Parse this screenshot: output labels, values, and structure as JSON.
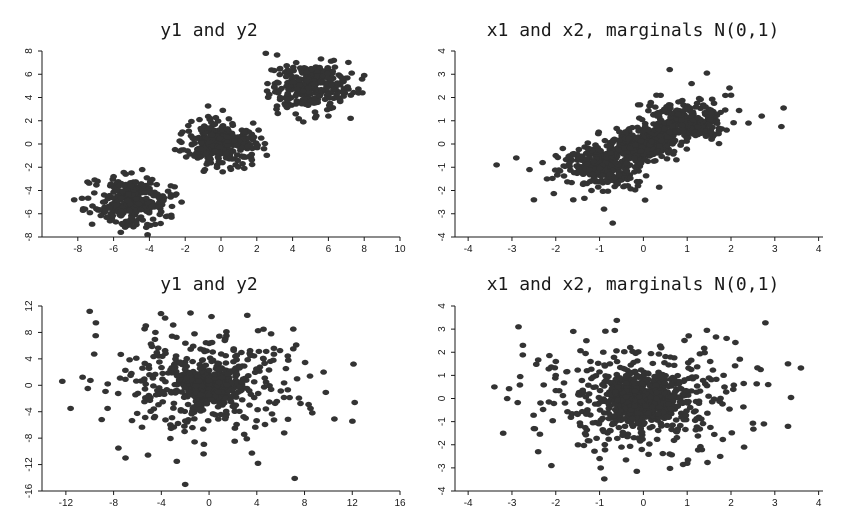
{
  "figure": {
    "panel_titles": [
      "y1 and y2",
      "x1 and x2, marginals N(0,1)",
      "y1 and y2",
      "x1 and x2, marginals N(0,1)"
    ]
  },
  "chart_data": [
    {
      "type": "scatter",
      "title": "y1 and y2",
      "xlabel": "",
      "ylabel": "",
      "xlim": [
        -10,
        10
      ],
      "ylim": [
        -8,
        8
      ],
      "xticks": [
        -8,
        -6,
        -4,
        -2,
        0,
        2,
        4,
        6,
        8,
        10
      ],
      "yticks": [
        -8,
        -6,
        -4,
        -2,
        0,
        2,
        4,
        6,
        8
      ],
      "grid": false,
      "point_color": "#333333",
      "clusters": [
        {
          "center": [
            -5,
            -5
          ],
          "spread": 1,
          "n": 300
        },
        {
          "center": [
            0,
            0
          ],
          "spread": 1,
          "n": 300
        },
        {
          "center": [
            5,
            5
          ],
          "spread": 1,
          "n": 300
        }
      ],
      "points": [
        [
          -8.2,
          -4.8
        ],
        [
          -7.6,
          -5.6
        ],
        [
          -6.9,
          -3.2
        ],
        [
          -7.2,
          -6.9
        ],
        [
          -3.0,
          -6.2
        ],
        [
          -2.5,
          -4.3
        ],
        [
          -4.4,
          -2.2
        ],
        [
          -4.1,
          -7.8
        ],
        [
          -5.6,
          -7.6
        ],
        [
          -6.0,
          -2.8
        ],
        [
          -2.2,
          -5.0
        ],
        [
          -2.8,
          -3.6
        ],
        [
          -1.8,
          1.1
        ],
        [
          -2.3,
          -0.6
        ],
        [
          0.1,
          2.9
        ],
        [
          1.3,
          -2.1
        ],
        [
          2.4,
          -0.4
        ],
        [
          1.8,
          1.8
        ],
        [
          -0.9,
          -2.2
        ],
        [
          2.1,
          1.2
        ],
        [
          -1.2,
          2.1
        ],
        [
          2.5,
          7.8
        ],
        [
          4.6,
          1.9
        ],
        [
          3.1,
          3.0
        ],
        [
          7.9,
          4.4
        ],
        [
          7.3,
          6.1
        ],
        [
          8.0,
          5.9
        ],
        [
          6.0,
          2.4
        ],
        [
          2.6,
          5.2
        ],
        [
          3.3,
          6.5
        ],
        [
          6.3,
          7.2
        ],
        [
          4.2,
          7.0
        ]
      ]
    },
    {
      "type": "scatter",
      "title": "x1 and x2, marginals N(0,1)",
      "xlabel": "",
      "ylabel": "",
      "xlim": [
        -4.3,
        4.1
      ],
      "ylim": [
        -4,
        4
      ],
      "xticks": [
        -4,
        -3,
        -2,
        -1,
        0,
        1,
        2,
        3,
        4
      ],
      "yticks": [
        -4,
        -3,
        -2,
        -1,
        0,
        1,
        2,
        3,
        4
      ],
      "grid": false,
      "point_color": "#333333",
      "clusters": [
        {
          "center": [
            -0.95,
            -0.95
          ],
          "spread": 0.45,
          "n": 300
        },
        {
          "center": [
            0,
            0
          ],
          "spread": 0.3,
          "n": 300
        },
        {
          "center": [
            0.95,
            0.95
          ],
          "spread": 0.45,
          "n": 300
        }
      ],
      "points": [
        [
          -3.35,
          -0.9
        ],
        [
          -2.9,
          -0.6
        ],
        [
          -2.5,
          -2.4
        ],
        [
          -2.2,
          -1.5
        ],
        [
          -2.6,
          -1.1
        ],
        [
          -2.0,
          -0.5
        ],
        [
          -0.7,
          -3.4
        ],
        [
          -0.2,
          -0.6
        ],
        [
          -1.6,
          -2.4
        ],
        [
          -0.9,
          -2.8
        ],
        [
          -2.3,
          -0.8
        ],
        [
          0.6,
          3.2
        ],
        [
          1.45,
          3.05
        ],
        [
          2.7,
          1.2
        ],
        [
          3.2,
          1.55
        ],
        [
          3.15,
          0.75
        ],
        [
          2.0,
          2.1
        ],
        [
          1.9,
          0.6
        ],
        [
          2.4,
          0.9
        ],
        [
          0.3,
          2.1
        ],
        [
          0.6,
          0.5
        ],
        [
          1.1,
          2.6
        ]
      ]
    },
    {
      "type": "scatter",
      "title": "y1 and y2",
      "xlabel": "",
      "ylabel": "",
      "xlim": [
        -14,
        16
      ],
      "ylim": [
        -16,
        12
      ],
      "xticks": [
        -12,
        -8,
        -4,
        0,
        4,
        8,
        12,
        16
      ],
      "yticks": [
        -16,
        -12,
        -8,
        -4,
        0,
        4,
        8,
        12
      ],
      "grid": false,
      "point_color": "#333333",
      "clusters": [
        {
          "center": [
            0,
            0
          ],
          "spread": 1,
          "n": 500
        },
        {
          "center": [
            0,
            0
          ],
          "spread": 4,
          "n": 400
        }
      ],
      "points": [
        [
          -12.3,
          0.6
        ],
        [
          -11.6,
          -3.5
        ],
        [
          -10.0,
          11.2
        ],
        [
          -9.5,
          7.5
        ],
        [
          -9.0,
          -5.2
        ],
        [
          -8.5,
          -3.5
        ],
        [
          -7.6,
          -9.5
        ],
        [
          -7.0,
          -11.0
        ],
        [
          -5.3,
          9.0
        ],
        [
          -2.7,
          -11.5
        ],
        [
          -2.0,
          -15.0
        ],
        [
          0.2,
          10.4
        ],
        [
          3.2,
          10.6
        ],
        [
          4.1,
          -11.8
        ],
        [
          6.3,
          -7.2
        ],
        [
          9.6,
          2.0
        ],
        [
          12.1,
          3.2
        ],
        [
          12.2,
          -2.6
        ],
        [
          10.5,
          -5.1
        ],
        [
          8.5,
          -3.5
        ],
        [
          -4.5,
          8.0
        ],
        [
          5.2,
          7.8
        ],
        [
          -6.1,
          4.1
        ],
        [
          7.3,
          6.1
        ]
      ]
    },
    {
      "type": "scatter",
      "title": "x1 and x2, marginals N(0,1)",
      "xlabel": "",
      "ylabel": "",
      "xlim": [
        -4.3,
        4.1
      ],
      "ylim": [
        -4,
        4
      ],
      "xticks": [
        -4,
        -3,
        -2,
        -1,
        0,
        1,
        2,
        3,
        4
      ],
      "yticks": [
        -4,
        -3,
        -2,
        -1,
        0,
        1,
        2,
        3,
        4
      ],
      "grid": false,
      "point_color": "#333333",
      "clusters": [
        {
          "center": [
            0,
            0
          ],
          "spread": 0.45,
          "n": 500
        },
        {
          "center": [
            0,
            0
          ],
          "spread": 1.2,
          "n": 400
        }
      ],
      "points": [
        [
          -3.4,
          0.5
        ],
        [
          -3.2,
          -1.5
        ],
        [
          -2.85,
          3.1
        ],
        [
          -2.75,
          2.3
        ],
        [
          -2.5,
          -1.3
        ],
        [
          -2.4,
          -2.3
        ],
        [
          -2.1,
          -2.9
        ],
        [
          -1.6,
          2.9
        ],
        [
          -1.3,
          2.5
        ],
        [
          -0.15,
          -3.15
        ],
        [
          0.6,
          -2.4
        ],
        [
          1.45,
          2.95
        ],
        [
          1.9,
          2.6
        ],
        [
          2.3,
          -2.1
        ],
        [
          2.75,
          -1.1
        ],
        [
          2.85,
          0.6
        ],
        [
          3.3,
          1.5
        ],
        [
          3.3,
          -1.2
        ],
        [
          2.2,
          1.7
        ],
        [
          -2.0,
          1.6
        ],
        [
          1.0,
          -2.8
        ],
        [
          -1.0,
          -2.6
        ]
      ]
    }
  ]
}
